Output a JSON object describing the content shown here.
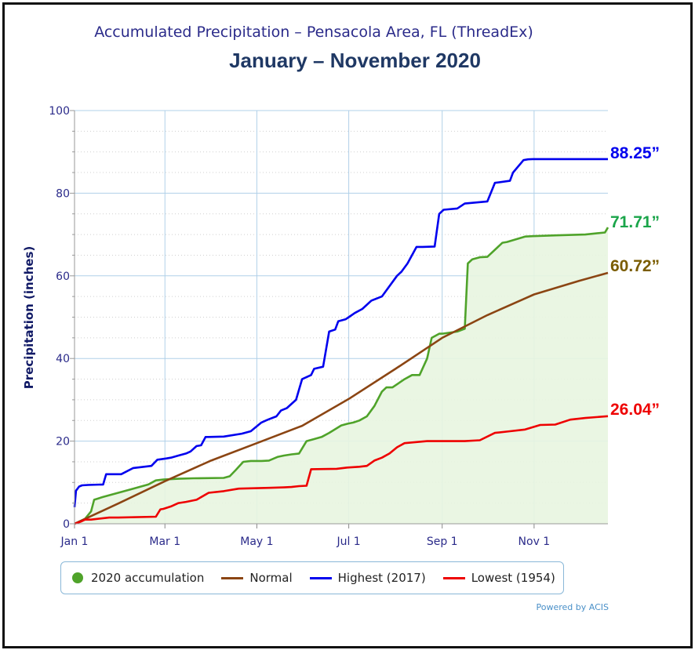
{
  "title": "Accumulated Precipitation – Pensacola Area, FL (ThreadEx)",
  "subtitle": "January – November 2020",
  "credit": "Powered by ACIS",
  "colors": {
    "accumulation": "#4fa32a",
    "accumulation_fill": "#e8f5e0",
    "normal": "#8b4513",
    "highest": "#0000ee",
    "lowest": "#ee0000",
    "grid": "#b0d0e8",
    "axis_text": "#2b2b8a"
  },
  "legend": [
    {
      "label": "2020 accumulation",
      "color": "#4fa32a",
      "marker": "dot"
    },
    {
      "label": "Normal",
      "color": "#8b4513",
      "marker": "line"
    },
    {
      "label": "Highest (2017)",
      "color": "#0000ee",
      "marker": "line"
    },
    {
      "label": "Lowest (1954)",
      "color": "#ee0000",
      "marker": "line"
    }
  ],
  "end_labels": {
    "highest": "88.25”",
    "accumulation": "71.71”",
    "normal": "60.72”",
    "lowest": "26.04”"
  },
  "chart_data": {
    "type": "line",
    "title": "Accumulated Precipitation – Pensacola Area, FL (ThreadEx)",
    "subtitle": "January – November 2020",
    "xlabel": "",
    "ylabel": "Precipitation (inches)",
    "x_unit": "day of year",
    "x_ticks": [
      {
        "day": 1,
        "label": "Jan 1"
      },
      {
        "day": 61,
        "label": "Mar 1"
      },
      {
        "day": 122,
        "label": "May 1"
      },
      {
        "day": 183,
        "label": "Jul 1"
      },
      {
        "day": 245,
        "label": "Sep 1"
      },
      {
        "day": 306,
        "label": "Nov 1"
      }
    ],
    "xlim": [
      1,
      355
    ],
    "ylim": [
      0,
      100
    ],
    "y_ticks": [
      0,
      20,
      40,
      60,
      80,
      100
    ],
    "grid": true,
    "legend_position": "bottom",
    "series": [
      {
        "name": "Highest (2017)",
        "key": "highest",
        "x": [
          1,
          2,
          4,
          6,
          10,
          20,
          22,
          32,
          40,
          52,
          56,
          58,
          62,
          65,
          70,
          75,
          78,
          82,
          85,
          88,
          90,
          100,
          112,
          118,
          125,
          128,
          130,
          135,
          138,
          142,
          148,
          152,
          158,
          160,
          166,
          170,
          174,
          176,
          181,
          183,
          187,
          192,
          198,
          205,
          215,
          218,
          222,
          228,
          232,
          240,
          243,
          246,
          255,
          260,
          275,
          280,
          290,
          292,
          299,
          302,
          305,
          318,
          325,
          355
        ],
        "values": [
          4,
          8,
          9,
          9.3,
          9.4,
          9.5,
          12,
          12,
          13.5,
          14,
          15.5,
          15.6,
          15.8,
          16,
          16.5,
          17,
          17.5,
          18.8,
          19,
          21,
          21,
          21.1,
          21.8,
          22.4,
          24.5,
          25,
          25.3,
          26,
          27.4,
          28,
          30,
          35,
          36,
          37.5,
          38,
          46.5,
          47,
          49,
          49.5,
          50,
          51,
          52,
          54,
          55,
          60,
          61,
          63,
          67,
          67,
          67.1,
          75,
          76,
          76.3,
          77.5,
          78,
          82.5,
          83,
          85,
          88,
          88.2,
          88.25,
          88.25,
          88.25,
          88.25
        ]
      },
      {
        "name": "2020 accumulation",
        "key": "accumulation",
        "x": [
          1,
          8,
          12,
          14,
          20,
          30,
          40,
          50,
          55,
          60,
          65,
          70,
          80,
          100,
          104,
          108,
          113,
          118,
          125,
          130,
          136,
          140,
          145,
          150,
          155,
          160,
          165,
          170,
          178,
          182,
          186,
          190,
          195,
          200,
          205,
          208,
          212,
          220,
          225,
          230,
          235,
          238,
          243,
          245,
          255,
          260,
          262,
          265,
          270,
          275,
          285,
          288,
          300,
          305,
          320,
          340,
          353,
          355
        ],
        "values": [
          0,
          1.2,
          3,
          5.8,
          6.5,
          7.5,
          8.5,
          9.5,
          10.5,
          10.7,
          10.8,
          10.9,
          11,
          11.1,
          11.5,
          13,
          15,
          15.2,
          15.2,
          15.3,
          16.2,
          16.5,
          16.8,
          17,
          20,
          20.5,
          21,
          22,
          23.8,
          24.2,
          24.5,
          25,
          26,
          28.5,
          32,
          33,
          33,
          35,
          36,
          36,
          40,
          45,
          46,
          46,
          46.5,
          47.2,
          63,
          64,
          64.5,
          64.6,
          68,
          68.2,
          69.5,
          69.6,
          69.8,
          70,
          70.5,
          71.71
        ]
      },
      {
        "name": "Normal",
        "key": "normal",
        "x": [
          1,
          30,
          61,
          91,
          122,
          152,
          183,
          214,
          245,
          275,
          306,
          336,
          355
        ],
        "values": [
          0,
          4.9,
          10.3,
          15.2,
          19.5,
          23.7,
          30.2,
          37.5,
          45,
          50.5,
          55.5,
          58.8,
          60.72
        ]
      },
      {
        "name": "Lowest (1954)",
        "key": "lowest",
        "x": [
          1,
          5,
          8,
          12,
          24,
          30,
          55,
          58,
          60,
          65,
          70,
          75,
          82,
          90,
          100,
          110,
          120,
          130,
          140,
          145,
          150,
          155,
          158,
          175,
          182,
          190,
          195,
          200,
          205,
          210,
          215,
          220,
          235,
          260,
          270,
          280,
          290,
          300,
          310,
          320,
          330,
          340,
          355
        ],
        "values": [
          0,
          0.5,
          1,
          1,
          1.5,
          1.5,
          1.7,
          3.5,
          3.6,
          4.2,
          5,
          5.3,
          5.8,
          7.5,
          7.9,
          8.5,
          8.6,
          8.7,
          8.8,
          8.9,
          9.1,
          9.2,
          13.2,
          13.3,
          13.6,
          13.8,
          14,
          15.3,
          16,
          17,
          18.5,
          19.5,
          20,
          20,
          20.2,
          22,
          22.4,
          22.8,
          23.9,
          24,
          25.2,
          25.6,
          26.04
        ]
      }
    ]
  }
}
